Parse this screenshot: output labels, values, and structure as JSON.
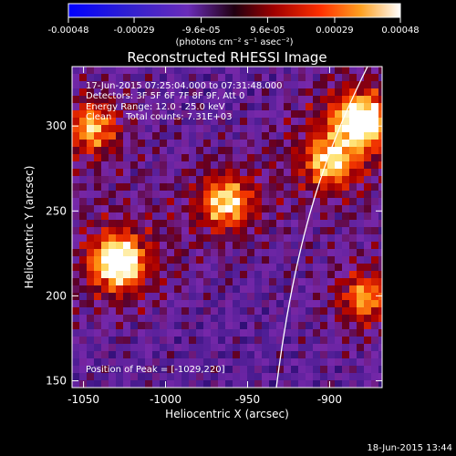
{
  "colorbar": {
    "ticks": [
      "-0.00048",
      "-0.00029",
      "-9.6e-05",
      "9.6e-05",
      "0.00029",
      "0.00048"
    ],
    "units": "(photons cm⁻² s⁻¹ asec⁻²)"
  },
  "chart_data": {
    "type": "heatmap",
    "title": "Reconstructed RHESSI Image",
    "xlabel": "Heliocentric X (arcsec)",
    "ylabel": "Heliocentric Y (arcsec)",
    "xlim": [
      -1057,
      -868
    ],
    "ylim": [
      146,
      335
    ],
    "x_ticks": [
      -1050,
      -1000,
      -950,
      -900
    ],
    "y_ticks": [
      150,
      200,
      250,
      300
    ],
    "colormap": "IDL red-temperature (negative: blue/purple, positive: red-orange-yellow-white)",
    "value_range": [
      -0.00048,
      0.00048
    ],
    "annotations": [
      "17-Jun-2015 07:25:04.000 to 07:31:48.000",
      "Detectors: 3F 5F 6F 7F 8F 9F, Att 0",
      "Energy Range: 12.0 - 25.0 keV",
      "Clean     Total counts: 7.31E+03"
    ],
    "peak_label": "Position of Peak = [-1029,220]",
    "peak_position": [
      -1029,
      220
    ],
    "bright_sources": [
      {
        "x": -1029,
        "y": 220,
        "intensity": 1.0
      },
      {
        "x": -881,
        "y": 303,
        "intensity": 0.95
      },
      {
        "x": -963,
        "y": 255,
        "intensity": 0.7
      },
      {
        "x": -1045,
        "y": 299,
        "intensity": 0.6
      },
      {
        "x": -900,
        "y": 279,
        "intensity": 0.6
      },
      {
        "x": -878,
        "y": 199,
        "intensity": 0.55
      }
    ],
    "limb": "solar limb curve crossing the field"
  },
  "footer": {
    "timestamp": "18-Jun-2015 13:44"
  }
}
